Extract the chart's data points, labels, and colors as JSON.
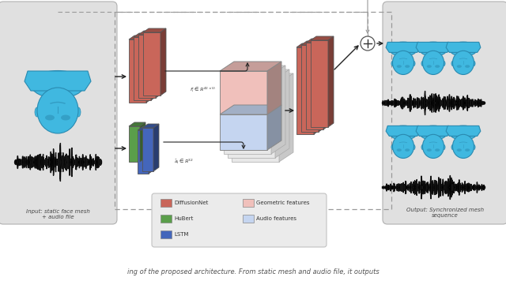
{
  "bg_color": "#ffffff",
  "left_panel_color": "#e0e0e0",
  "right_panel_color": "#e0e0e0",
  "legend_bg_color": "#e8e8e8",
  "diffusionnet_color": "#c9665a",
  "hubert_color": "#5a9e4a",
  "lstm_color": "#4466bb",
  "geo_features_color": "#f0c0bb",
  "audio_features_color": "#c5d5f0",
  "face_color": "#40b8e0",
  "face_dark": "#2a8ab0",
  "arrow_color": "#222222",
  "dashed_box_color": "#999999",
  "input_label": "Input: static face mesh\n+ audio file",
  "output_label": "Output: Synchronized mesh\nsequence",
  "caption": "ing of the proposed architecture. From static mesh and audio file, it outputs"
}
